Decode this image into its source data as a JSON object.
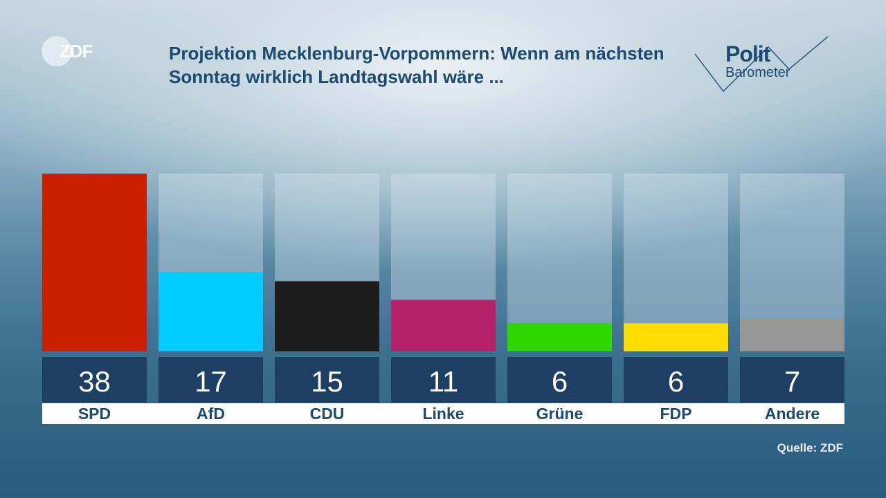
{
  "logo": {
    "text": "ZDF"
  },
  "title": "Projektion Mecklenburg-Vorpommern: Wenn am nächsten Sonntag wirklich Landtagswahl wäre ...",
  "brand": {
    "line1": "Polit",
    "line2": "Barometer"
  },
  "source": "Quelle: ZDF",
  "chart_data": {
    "type": "bar",
    "title": "Projektion Mecklenburg-Vorpommern: Wenn am nächsten Sonntag wirklich Landtagswahl wäre ...",
    "categories": [
      "SPD",
      "AfD",
      "CDU",
      "Linke",
      "Grüne",
      "FDP",
      "Andere"
    ],
    "values": [
      38,
      17,
      15,
      11,
      6,
      6,
      7
    ],
    "colors": [
      "#cc1f00",
      "#00ccff",
      "#1d1d1d",
      "#b5216b",
      "#2fd600",
      "#ffdd00",
      "#969696"
    ],
    "ylim": [
      0,
      38
    ],
    "xlabel": "",
    "ylabel": ""
  }
}
